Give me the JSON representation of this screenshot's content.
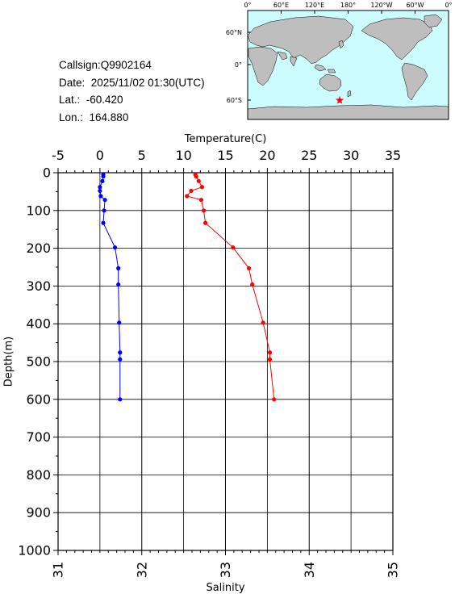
{
  "info": {
    "callsign": "Callsign:Q9902164",
    "date": "Date:  2025/11/02 01:30(UTC)",
    "lat": "Lat.:  -60.420",
    "lon": "Lon.:  164.880"
  },
  "map": {
    "lon_labels": [
      "0°",
      "60°E",
      "120°E",
      "180°",
      "120°W",
      "60°W",
      "0°"
    ],
    "lat_labels": [
      "60°N",
      "0°",
      "60°S"
    ],
    "ocean_color": "#cdfcff",
    "land_color": "#bebebe",
    "marker": {
      "lat": -60.42,
      "lon": 164.88,
      "symbol": "star",
      "color": "#ff0000"
    }
  },
  "chart_data": {
    "type": "line",
    "xlabel_top": "Temperature(C)",
    "xlabel_bottom": "Salinity",
    "ylabel": "Depth(m)",
    "temperature_range": [
      -5,
      35
    ],
    "salinity_range": [
      31,
      35
    ],
    "depth_range": [
      0,
      1000
    ],
    "temperature_ticks": [
      "-5",
      "0",
      "5",
      "10",
      "15",
      "20",
      "25",
      "30",
      "35"
    ],
    "salinity_ticks": [
      "31",
      "32",
      "33",
      "34",
      "35"
    ],
    "depth_ticks": [
      "0",
      "100",
      "200",
      "300",
      "400",
      "500",
      "600",
      "700",
      "800",
      "900",
      "1000"
    ],
    "grid": true,
    "series": [
      {
        "color": "#ff0000",
        "axis": "temperature",
        "points": [
          [
            11.4,
            5
          ],
          [
            11.5,
            10
          ],
          [
            11.8,
            22
          ],
          [
            12.2,
            38
          ],
          [
            10.9,
            48
          ],
          [
            10.4,
            62
          ],
          [
            12.1,
            72
          ],
          [
            12.4,
            100
          ],
          [
            12.6,
            133
          ],
          [
            15.9,
            198
          ],
          [
            17.8,
            253
          ],
          [
            18.2,
            296
          ],
          [
            19.5,
            397
          ],
          [
            20.3,
            476
          ],
          [
            20.3,
            494
          ],
          [
            20.8,
            600
          ]
        ]
      },
      {
        "color": "#0000ff",
        "axis": "salinity",
        "points": [
          [
            31.54,
            5
          ],
          [
            31.54,
            10
          ],
          [
            31.53,
            22
          ],
          [
            31.5,
            38
          ],
          [
            31.5,
            48
          ],
          [
            31.51,
            62
          ],
          [
            31.56,
            72
          ],
          [
            31.55,
            100
          ],
          [
            31.54,
            133
          ],
          [
            31.68,
            198
          ],
          [
            31.72,
            253
          ],
          [
            31.72,
            296
          ],
          [
            31.73,
            397
          ],
          [
            31.74,
            476
          ],
          [
            31.74,
            494
          ],
          [
            31.74,
            600
          ]
        ]
      }
    ]
  }
}
